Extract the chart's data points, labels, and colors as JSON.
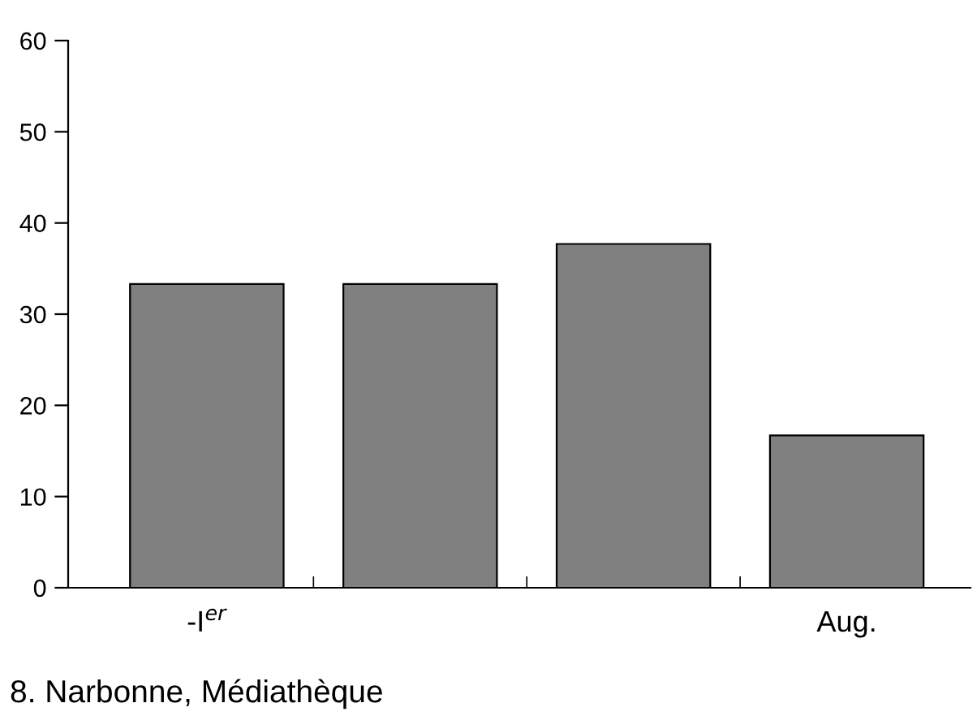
{
  "chart_data": {
    "type": "bar",
    "categories": [
      "-I$^{er}$",
      null,
      null,
      "Aug."
    ],
    "values": [
      33.3,
      33.3,
      37.7,
      16.7
    ],
    "color": "#808080",
    "ylim": [
      0,
      60
    ],
    "yticks": [
      0,
      10,
      20,
      30,
      40,
      50,
      60
    ],
    "grid": false,
    "annotations": [
      "8. Narbonne, Médiathèque"
    ]
  }
}
